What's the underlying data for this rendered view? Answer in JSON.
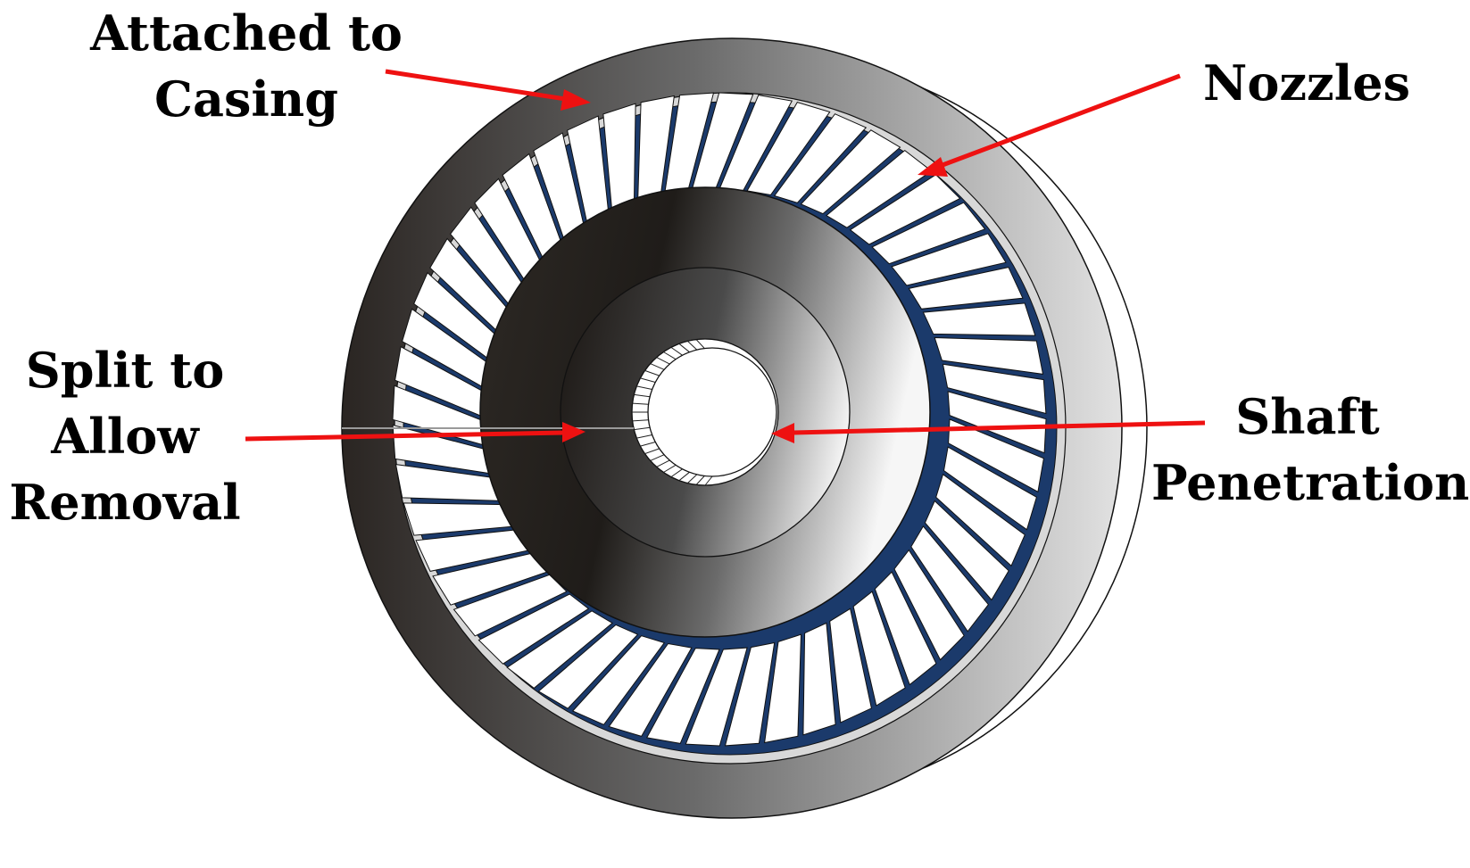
{
  "labels": {
    "casing": [
      "Attached to",
      "Casing"
    ],
    "nozzles": [
      "Nozzles"
    ],
    "split": [
      "Split to",
      "Allow",
      "Removal"
    ],
    "shaft": [
      "Shaft",
      "Penetration"
    ]
  },
  "colors": {
    "arrow": "#ee1111",
    "vane_fill": "#ffffff",
    "vane_gap": "#1b3a6b",
    "metal_dark": "#262320",
    "metal_light": "#f4f4f4",
    "outline": "#111111"
  },
  "nozzle_count": 52
}
